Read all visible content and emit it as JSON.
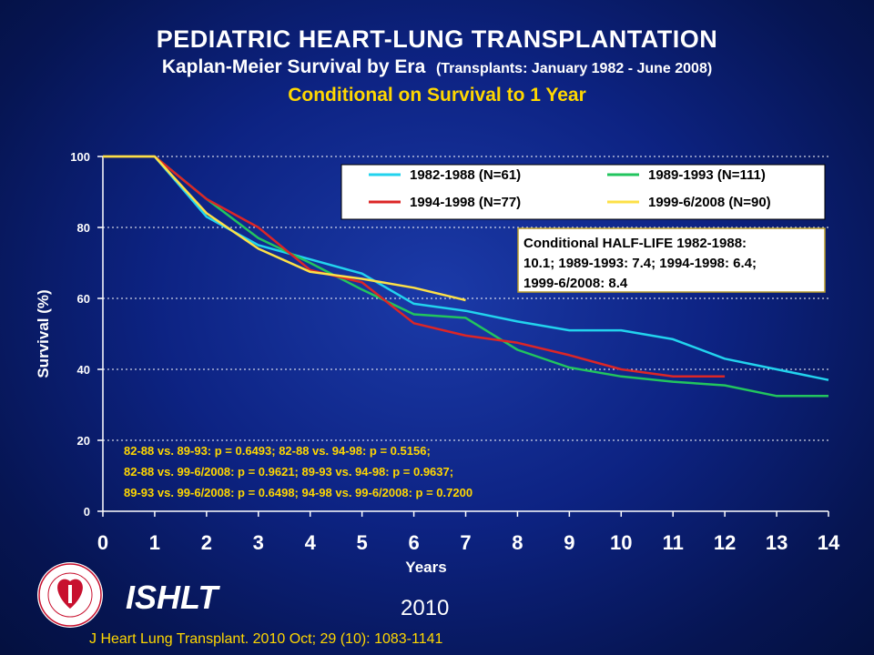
{
  "header": {
    "title": "PEDIATRIC HEART-LUNG TRANSPLANTATION",
    "subtitle_main": "Kaplan-Meier Survival by Era",
    "subtitle_range": "(Transplants: January 1982 - June 2008)",
    "condition": "Conditional on Survival to 1 Year"
  },
  "chart_data": {
    "type": "line",
    "xlabel": "Years",
    "ylabel": "Survival (%)",
    "xlim": [
      0,
      14
    ],
    "ylim": [
      0,
      100
    ],
    "x_ticks": [
      0,
      1,
      2,
      3,
      4,
      5,
      6,
      7,
      8,
      9,
      10,
      11,
      12,
      13,
      14
    ],
    "y_ticks": [
      0,
      20,
      40,
      60,
      80,
      100
    ],
    "grid": "horizontal dotted",
    "legend_position": "top-right",
    "series": [
      {
        "name": "1982-1988 (N=61)",
        "color": "#22d3ee",
        "x": [
          0,
          1,
          2,
          3,
          4,
          5,
          6,
          7,
          8,
          9,
          10,
          11,
          12,
          13,
          14
        ],
        "values": [
          100,
          100,
          83,
          75,
          71,
          67,
          58.5,
          56.5,
          53.5,
          51,
          51,
          48.5,
          43,
          40,
          37
        ]
      },
      {
        "name": "1989-1993 (N=111)",
        "color": "#22c55e",
        "x": [
          0,
          1,
          2,
          3,
          4,
          5,
          6,
          7,
          8,
          9,
          10,
          11,
          12,
          13,
          14
        ],
        "values": [
          100,
          100,
          88,
          77,
          70,
          62.5,
          55.5,
          54.5,
          45.5,
          40.5,
          38,
          36.5,
          35.5,
          32.5,
          32.5
        ]
      },
      {
        "name": "1994-1998 (N=77)",
        "color": "#dc2626",
        "x": [
          0,
          1,
          2,
          3,
          4,
          5,
          6,
          7,
          8,
          9,
          10,
          11,
          12
        ],
        "values": [
          100,
          100,
          88,
          80,
          68,
          64.5,
          53,
          49.5,
          47.5,
          44,
          40,
          38,
          38
        ]
      },
      {
        "name": "1999-6/2008 (N=90)",
        "color": "#fde047",
        "x": [
          0,
          1,
          2,
          3,
          4,
          5,
          6,
          7
        ],
        "values": [
          100,
          100,
          84,
          74,
          67.5,
          65.5,
          63,
          59.5
        ]
      }
    ],
    "half_life_box": {
      "lines": [
        "Conditional HALF-LIFE 1982-1988:",
        "10.1; 1989-1993: 7.4; 1994-1998: 6.4;",
        "1999-6/2008: 8.4"
      ]
    },
    "p_values": [
      "82-88 vs. 89-93: p = 0.6493; 82-88 vs. 94-98: p = 0.5156;",
      "82-88 vs. 99-6/2008: p = 0.9621; 89-93 vs. 94-98: p = 0.9637;",
      "89-93 vs. 99-6/2008: p = 0.6498; 94-98 vs. 99-6/2008: p = 0.7200"
    ]
  },
  "footer": {
    "org": "ISHLT",
    "year": "2010",
    "citation": "J Heart Lung Transplant. 2010 Oct; 29 (10): 1083-1141",
    "logo_text": "INTERNATIONAL SOCIETY FOR HEART & LUNG TRANSPLANTATION"
  }
}
